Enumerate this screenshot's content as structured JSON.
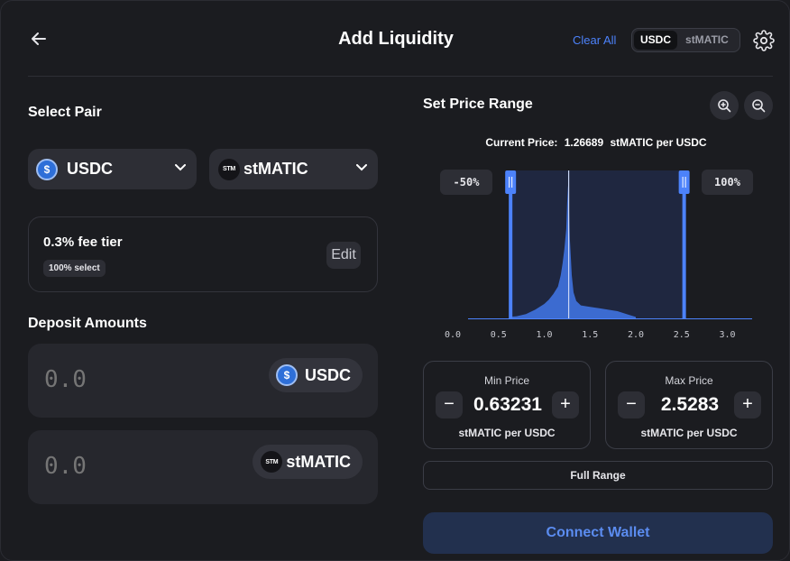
{
  "header": {
    "title": "Add Liquidity",
    "clear_all": "Clear All",
    "token_toggle": [
      "USDC",
      "stMATIC"
    ],
    "active_token": "USDC"
  },
  "select_pair": {
    "label": "Select Pair",
    "token_a": {
      "symbol": "USDC",
      "icon": "usdc-coin-icon"
    },
    "token_b": {
      "symbol": "stMATIC",
      "icon": "stmatic-coin-icon",
      "icon_text": "STM"
    }
  },
  "fee_tier": {
    "title": "0.3% fee tier",
    "badge": "100% select",
    "edit_label": "Edit"
  },
  "deposit": {
    "label": "Deposit Amounts",
    "amount_a": "0.0",
    "amount_b": "0.0",
    "token_a": "USDC",
    "token_b": "stMATIC",
    "token_b_icon_text": "STM"
  },
  "price_range": {
    "label": "Set Price Range",
    "current_price_label": "Current Price:",
    "current_price_value": "1.26689",
    "current_price_unit": "stMATIC per USDC",
    "lower_pct": "-50%",
    "upper_pct": "100%"
  },
  "min_price": {
    "label": "Min Price",
    "value": "0.63231",
    "unit": "stMATIC per USDC"
  },
  "max_price": {
    "label": "Max Price",
    "value": "2.5283",
    "unit": "stMATIC per USDC"
  },
  "full_range_label": "Full Range",
  "connect_label": "Connect Wallet",
  "colors": {
    "accent": "#4c82fb",
    "background": "#1b1c20",
    "card": "#26272d",
    "range_fill": "#1f2740"
  },
  "chart_data": {
    "type": "area",
    "x_ticks": [
      0.0,
      0.5,
      1.0,
      1.5,
      2.0,
      2.5,
      3.0
    ],
    "x_tick_labels": [
      "0.0",
      "0.5",
      "1.0",
      "1.5",
      "2.0",
      "2.5",
      "3.0"
    ],
    "xlim": [
      0.0,
      3.2
    ],
    "current_price": 1.26689,
    "range_min": 0.63231,
    "range_max": 2.5283,
    "liquidity": [
      [
        0.62,
        0.01
      ],
      [
        0.7,
        0.015
      ],
      [
        0.8,
        0.03
      ],
      [
        0.9,
        0.06
      ],
      [
        0.95,
        0.08
      ],
      [
        1.0,
        0.1
      ],
      [
        1.05,
        0.13
      ],
      [
        1.1,
        0.17
      ],
      [
        1.15,
        0.22
      ],
      [
        1.18,
        0.3
      ],
      [
        1.2,
        0.38
      ],
      [
        1.22,
        0.48
      ],
      [
        1.24,
        0.62
      ],
      [
        1.25,
        0.8
      ],
      [
        1.26,
        0.92
      ],
      [
        1.27,
        0.78
      ],
      [
        1.28,
        0.55
      ],
      [
        1.3,
        0.3
      ],
      [
        1.32,
        0.18
      ],
      [
        1.35,
        0.12
      ],
      [
        1.4,
        0.09
      ],
      [
        1.5,
        0.08
      ],
      [
        1.6,
        0.07
      ],
      [
        1.7,
        0.06
      ],
      [
        1.8,
        0.05
      ],
      [
        1.9,
        0.03
      ],
      [
        2.0,
        0.01
      ]
    ],
    "grid": false
  }
}
